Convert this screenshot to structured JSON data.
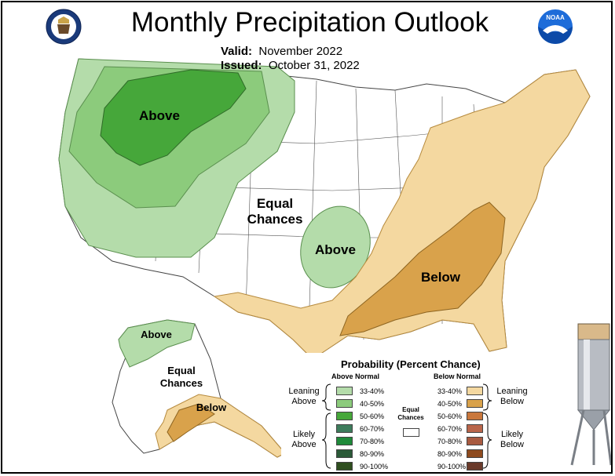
{
  "title": "Monthly Precipitation Outlook",
  "valid_label": "Valid:",
  "valid_value": "November 2022",
  "issued_label": "Issued:",
  "issued_value": "October 31, 2022",
  "regions": {
    "above_nw": "Above",
    "equal_chances_line1": "Equal",
    "equal_chances_line2": "Chances",
    "above_central": "Above",
    "below_se": "Below",
    "above_alaska": "Above",
    "equal_alaska_line1": "Equal",
    "equal_alaska_line2": "Chances",
    "below_alaska": "Below"
  },
  "legend": {
    "title": "Probability (Percent Chance)",
    "above_header": "Above Normal",
    "below_header": "Below Normal",
    "equal_label_line1": "Equal",
    "equal_label_line2": "Chances",
    "above_leaning_line1": "Leaning",
    "above_leaning_line2": "Above",
    "above_likely_line1": "Likely",
    "above_likely_line2": "Above",
    "below_leaning_line1": "Leaning",
    "below_leaning_line2": "Below",
    "below_likely_line1": "Likely",
    "below_likely_line2": "Below",
    "above_rows": [
      {
        "label": "33-40%",
        "color": "#b4dcaa"
      },
      {
        "label": "40-50%",
        "color": "#8ccb7c"
      },
      {
        "label": "50-60%",
        "color": "#46a73a"
      },
      {
        "label": "60-70%",
        "color": "#3d7c5c"
      },
      {
        "label": "70-80%",
        "color": "#1f8a3a"
      },
      {
        "label": "80-90%",
        "color": "#2b5a38"
      },
      {
        "label": "90-100%",
        "color": "#2f4f1f"
      }
    ],
    "below_rows": [
      {
        "label": "33-40%",
        "color": "#f4d8a0"
      },
      {
        "label": "40-50%",
        "color": "#d9a24b"
      },
      {
        "label": "50-60%",
        "color": "#c9773c"
      },
      {
        "label": "60-70%",
        "color": "#b9654a"
      },
      {
        "label": "70-80%",
        "color": "#a85a40"
      },
      {
        "label": "80-90%",
        "color": "#8e4a1e"
      },
      {
        "label": "90-100%",
        "color": "#6a3a2a"
      }
    ]
  },
  "colors": {
    "above_light": "#b4dcaa",
    "above_mid": "#8ccb7c",
    "above_dark": "#46a73a",
    "below_light": "#f4d8a0",
    "below_mid": "#d9a24b"
  }
}
